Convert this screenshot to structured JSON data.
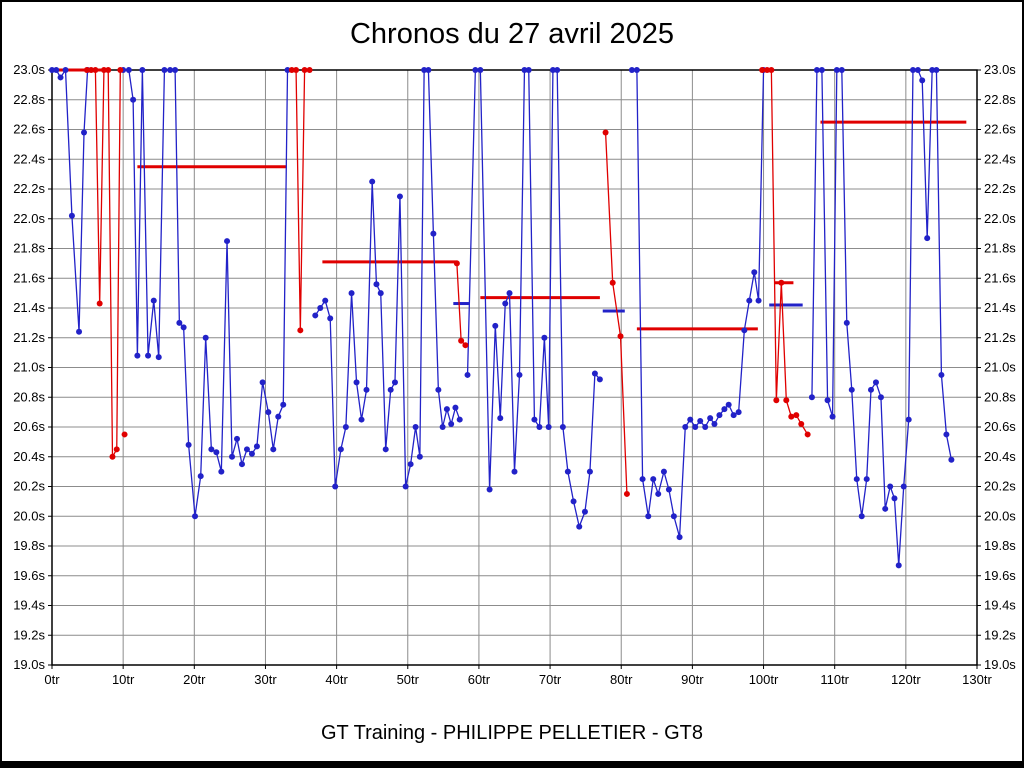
{
  "chart_data": {
    "type": "line",
    "title": "Chronos du 27 avril 2025",
    "footer": "GT Training - PHILIPPE PELLETIER - GT8",
    "xlabel": "",
    "ylabel": "",
    "xlim": [
      0,
      130
    ],
    "ylim": [
      19.0,
      23.0
    ],
    "grid": true,
    "legend": "none",
    "x_ticks": [
      0,
      10,
      20,
      30,
      40,
      50,
      60,
      70,
      80,
      90,
      100,
      110,
      120,
      130
    ],
    "x_tick_labels": [
      "0tr",
      "10tr",
      "20tr",
      "30tr",
      "40tr",
      "50tr",
      "60tr",
      "70tr",
      "80tr",
      "90tr",
      "100tr",
      "110tr",
      "120tr",
      "130tr"
    ],
    "y_ticks": [
      23.0,
      22.8,
      22.6,
      22.4,
      22.2,
      22.0,
      21.8,
      21.6,
      21.4,
      21.2,
      21.0,
      20.8,
      20.6,
      20.4,
      20.2,
      20.0,
      19.8,
      19.6,
      19.4,
      19.2,
      19.0
    ],
    "y_tick_labels": [
      "23.0s",
      "22.8s",
      "22.6s",
      "22.4s",
      "22.2s",
      "22.0s",
      "21.8s",
      "21.6s",
      "21.4s",
      "21.2s",
      "21.0s",
      "20.8s",
      "20.6s",
      "20.4s",
      "20.2s",
      "20.0s",
      "19.8s",
      "19.6s",
      "19.4s",
      "19.2s",
      "19.0s"
    ],
    "colors": {
      "blue": "#2222c8",
      "red": "#e00000",
      "grid": "#8c8c8c",
      "frame": "#000000"
    },
    "series": [
      {
        "name": "blue-driver-laps",
        "color_key": "blue",
        "marker_radius": 3,
        "segments": [
          [
            [
              0,
              23
            ],
            [
              0.6,
              23
            ],
            [
              1.2,
              22.95
            ],
            [
              1.9,
              23
            ],
            [
              2.8,
              22.02
            ],
            [
              3.8,
              21.24
            ],
            [
              4.5,
              22.58
            ],
            [
              5,
              23
            ]
          ],
          [
            [
              10,
              23
            ],
            [
              10.8,
              23
            ],
            [
              11.4,
              22.8
            ],
            [
              12,
              21.08
            ],
            [
              12.7,
              23
            ],
            [
              13.5,
              21.08
            ],
            [
              14.3,
              21.45
            ],
            [
              15,
              21.07
            ],
            [
              15.8,
              23
            ],
            [
              16.6,
              23
            ],
            [
              17.3,
              23
            ],
            [
              17.9,
              21.3
            ],
            [
              18.5,
              21.27
            ],
            [
              19.2,
              20.48
            ],
            [
              20.1,
              20.0
            ],
            [
              20.9,
              20.27
            ],
            [
              21.6,
              21.2
            ],
            [
              22.4,
              20.45
            ],
            [
              23.1,
              20.43
            ],
            [
              23.8,
              20.3
            ],
            [
              24.6,
              21.85
            ],
            [
              25.3,
              20.4
            ],
            [
              26,
              20.52
            ],
            [
              26.7,
              20.35
            ],
            [
              27.4,
              20.45
            ],
            [
              28.1,
              20.42
            ],
            [
              28.8,
              20.47
            ],
            [
              29.6,
              20.9
            ],
            [
              30.4,
              20.7
            ],
            [
              31.1,
              20.45
            ],
            [
              31.8,
              20.67
            ],
            [
              32.5,
              20.75
            ],
            [
              33.1,
              23
            ]
          ],
          [
            [
              37,
              21.35
            ],
            [
              37.7,
              21.4
            ],
            [
              38.4,
              21.45
            ],
            [
              39.1,
              21.33
            ],
            [
              39.8,
              20.2
            ],
            [
              40.6,
              20.45
            ],
            [
              41.3,
              20.6
            ],
            [
              42.1,
              21.5
            ],
            [
              42.8,
              20.9
            ],
            [
              43.5,
              20.65
            ],
            [
              44.2,
              20.85
            ],
            [
              45,
              22.25
            ],
            [
              45.6,
              21.56
            ],
            [
              46.2,
              21.5
            ],
            [
              46.9,
              20.45
            ],
            [
              47.6,
              20.85
            ],
            [
              48.2,
              20.9
            ],
            [
              48.9,
              22.15
            ],
            [
              49.7,
              20.2
            ],
            [
              50.4,
              20.35
            ],
            [
              51.1,
              20.6
            ],
            [
              51.7,
              20.4
            ],
            [
              52.3,
              23
            ],
            [
              52.9,
              23
            ],
            [
              53.6,
              21.9
            ],
            [
              54.3,
              20.85
            ],
            [
              54.9,
              20.6
            ],
            [
              55.5,
              20.72
            ],
            [
              56.1,
              20.62
            ],
            [
              56.7,
              20.73
            ],
            [
              57.3,
              20.65
            ]
          ],
          [
            [
              58.4,
              20.95
            ],
            [
              59.5,
              23
            ],
            [
              60.2,
              23
            ],
            [
              61.5,
              20.18
            ],
            [
              62.3,
              21.28
            ],
            [
              63,
              20.66
            ],
            [
              63.7,
              21.43
            ],
            [
              64.3,
              21.5
            ],
            [
              65,
              20.3
            ],
            [
              65.7,
              20.95
            ],
            [
              66.4,
              23
            ],
            [
              67,
              23
            ],
            [
              67.8,
              20.65
            ],
            [
              68.5,
              20.6
            ],
            [
              69.2,
              21.2
            ],
            [
              69.8,
              20.6
            ],
            [
              70.4,
              23
            ],
            [
              71,
              23
            ],
            [
              71.8,
              20.6
            ],
            [
              72.5,
              20.3
            ],
            [
              73.3,
              20.1
            ],
            [
              74.1,
              19.93
            ],
            [
              74.9,
              20.03
            ],
            [
              75.6,
              20.3
            ],
            [
              76.3,
              20.96
            ],
            [
              77,
              20.92
            ]
          ],
          [
            [
              81.5,
              23
            ],
            [
              82.2,
              23
            ],
            [
              83,
              20.25
            ],
            [
              83.8,
              20.0
            ],
            [
              84.5,
              20.25
            ],
            [
              85.2,
              20.15
            ],
            [
              86,
              20.3
            ],
            [
              86.7,
              20.18
            ],
            [
              87.4,
              20.0
            ],
            [
              88.2,
              19.86
            ],
            [
              89,
              20.6
            ],
            [
              89.7,
              20.65
            ],
            [
              90.4,
              20.6
            ],
            [
              91.1,
              20.64
            ],
            [
              91.8,
              20.6
            ],
            [
              92.5,
              20.66
            ],
            [
              93.1,
              20.62
            ],
            [
              93.8,
              20.68
            ],
            [
              94.5,
              20.72
            ],
            [
              95.1,
              20.75
            ],
            [
              95.8,
              20.68
            ],
            [
              96.5,
              20.7
            ],
            [
              97.3,
              21.25
            ],
            [
              98,
              21.45
            ],
            [
              98.7,
              21.64
            ],
            [
              99.3,
              21.45
            ],
            [
              100,
              23
            ]
          ],
          [
            [
              106.8,
              20.8
            ],
            [
              107.5,
              23
            ],
            [
              108.2,
              23
            ],
            [
              109,
              20.78
            ],
            [
              109.7,
              20.67
            ],
            [
              110.3,
              23
            ],
            [
              111,
              23
            ],
            [
              111.7,
              21.3
            ],
            [
              112.4,
              20.85
            ],
            [
              113.1,
              20.25
            ],
            [
              113.8,
              20.0
            ],
            [
              114.5,
              20.25
            ],
            [
              115.1,
              20.85
            ],
            [
              115.8,
              20.9
            ],
            [
              116.5,
              20.8
            ],
            [
              117.1,
              20.05
            ],
            [
              117.8,
              20.2
            ],
            [
              118.4,
              20.12
            ],
            [
              119,
              19.67
            ],
            [
              119.7,
              20.2
            ],
            [
              120.4,
              20.65
            ],
            [
              121,
              23
            ],
            [
              121.7,
              23
            ],
            [
              122.3,
              22.93
            ],
            [
              123,
              21.87
            ],
            [
              123.7,
              23
            ],
            [
              124.3,
              23
            ],
            [
              125,
              20.95
            ],
            [
              125.7,
              20.55
            ],
            [
              126.4,
              20.38
            ]
          ]
        ]
      },
      {
        "name": "red-driver-laps",
        "color_key": "red",
        "marker_radius": 3,
        "segments": [
          [
            [
              4.9,
              23
            ],
            [
              5.5,
              23
            ],
            [
              6.1,
              23
            ],
            [
              6.7,
              21.43
            ],
            [
              7.3,
              23
            ],
            [
              7.9,
              23
            ],
            [
              8.5,
              20.4
            ],
            [
              9.1,
              20.45
            ],
            [
              9.6,
              23
            ]
          ],
          [
            [
              10.2,
              20.55
            ]
          ],
          [
            [
              33.7,
              23
            ],
            [
              34.3,
              23
            ],
            [
              34.9,
              21.25
            ],
            [
              35.5,
              23
            ],
            [
              36.2,
              23
            ]
          ],
          [
            [
              56.9,
              21.7
            ],
            [
              57.5,
              21.18
            ],
            [
              58.1,
              21.15
            ]
          ],
          [
            [
              77.8,
              22.58
            ],
            [
              78.8,
              21.57
            ],
            [
              79.9,
              21.21
            ],
            [
              80.8,
              20.15
            ]
          ],
          [
            [
              99.8,
              23
            ],
            [
              100.5,
              23
            ],
            [
              101.1,
              23
            ],
            [
              101.8,
              20.78
            ],
            [
              102.5,
              21.57
            ],
            [
              103.2,
              20.78
            ],
            [
              103.9,
              20.67
            ],
            [
              104.6,
              20.68
            ],
            [
              105.3,
              20.62
            ],
            [
              106.2,
              20.55
            ]
          ]
        ]
      }
    ],
    "reference_lines": [
      {
        "series": "red",
        "y": 23.0,
        "x1": 0,
        "x2": 7.3
      },
      {
        "series": "red",
        "y": 22.35,
        "x1": 12,
        "x2": 33
      },
      {
        "series": "red",
        "y": 21.71,
        "x1": 38,
        "x2": 57
      },
      {
        "series": "red",
        "y": 21.47,
        "x1": 60.2,
        "x2": 77
      },
      {
        "series": "red",
        "y": 21.26,
        "x1": 82.2,
        "x2": 99.2
      },
      {
        "series": "red",
        "y": 21.57,
        "x1": 101.5,
        "x2": 104.2
      },
      {
        "series": "red",
        "y": 22.65,
        "x1": 108,
        "x2": 128.5
      },
      {
        "series": "blue",
        "y": 21.43,
        "x1": 56.4,
        "x2": 58.6
      },
      {
        "series": "blue",
        "y": 21.38,
        "x1": 77.4,
        "x2": 80.5
      },
      {
        "series": "blue",
        "y": 21.42,
        "x1": 100.8,
        "x2": 105.5
      }
    ]
  }
}
